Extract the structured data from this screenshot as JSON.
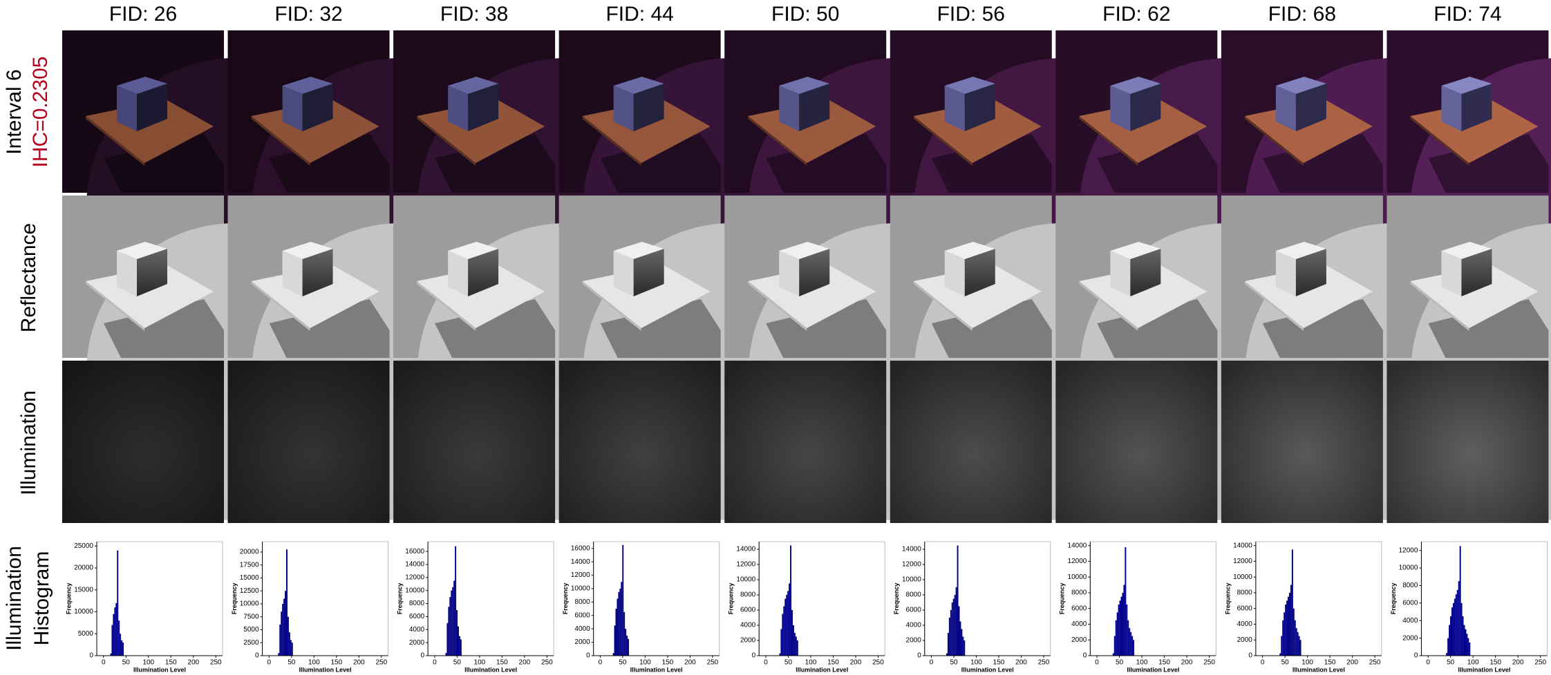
{
  "columns": [
    "FID: 26",
    "FID: 32",
    "FID: 38",
    "FID: 44",
    "FID: 50",
    "FID: 56",
    "FID: 62",
    "FID: 68",
    "FID: 74"
  ],
  "row_labels": {
    "interval": "Interval 6",
    "ihc": "IHC=0.2305",
    "reflectance": "Reflectance",
    "illumination": "Illumination",
    "histogram": [
      "Illumination",
      "Histogram"
    ]
  },
  "chart_data": [
    {
      "type": "histogram",
      "xlabel": "Illumination Level",
      "ylabel": "Frequency",
      "color": "#00008b",
      "bins": [
        15,
        18,
        21,
        24,
        27,
        30,
        33,
        36,
        39,
        42,
        45
      ],
      "values": [
        500,
        7000,
        9500,
        11000,
        12000,
        24000,
        8000,
        5000,
        3500,
        3000
      ],
      "xlim": [
        -15,
        265
      ],
      "xticks": [
        0,
        50,
        100,
        150,
        200,
        250
      ],
      "ylim": [
        0,
        26000
      ],
      "yticks": [
        0,
        5000,
        10000,
        15000,
        20000,
        25000
      ]
    },
    {
      "type": "histogram",
      "xlabel": "Illumination Level",
      "ylabel": "Frequency",
      "color": "#00008b",
      "bins": [
        20,
        23,
        26,
        29,
        32,
        35,
        38,
        41,
        44,
        47,
        50,
        53
      ],
      "values": [
        500,
        6000,
        8500,
        10000,
        11000,
        12500,
        20500,
        7500,
        4500,
        3000,
        2500
      ],
      "xlim": [
        -15,
        265
      ],
      "xticks": [
        0,
        50,
        100,
        150,
        200,
        250
      ],
      "ylim": [
        0,
        22000
      ],
      "yticks": [
        0,
        2500,
        5000,
        7500,
        10000,
        12500,
        15000,
        17500,
        20000
      ]
    },
    {
      "type": "histogram",
      "xlabel": "Illumination Level",
      "ylabel": "Frequency",
      "color": "#00008b",
      "bins": [
        24,
        27,
        30,
        33,
        36,
        39,
        42,
        45,
        48,
        51,
        54,
        57,
        60
      ],
      "values": [
        400,
        5000,
        7500,
        9000,
        10000,
        10500,
        11500,
        16800,
        7000,
        4500,
        3000,
        2500
      ],
      "xlim": [
        -15,
        265
      ],
      "xticks": [
        0,
        50,
        100,
        150,
        200,
        250
      ],
      "ylim": [
        0,
        17500
      ],
      "yticks": [
        0,
        2000,
        4000,
        6000,
        8000,
        10000,
        12000,
        14000,
        16000
      ]
    },
    {
      "type": "histogram",
      "xlabel": "Illumination Level",
      "ylabel": "Frequency",
      "color": "#00008b",
      "bins": [
        28,
        31,
        34,
        37,
        40,
        43,
        46,
        49,
        52,
        55,
        58,
        61,
        64
      ],
      "values": [
        400,
        4500,
        7000,
        8500,
        9500,
        10000,
        11000,
        16500,
        6500,
        4000,
        3000,
        2500
      ],
      "xlim": [
        -15,
        265
      ],
      "xticks": [
        0,
        50,
        100,
        150,
        200,
        250
      ],
      "ylim": [
        0,
        17000
      ],
      "yticks": [
        0,
        2000,
        4000,
        6000,
        8000,
        10000,
        12000,
        14000,
        16000
      ]
    },
    {
      "type": "histogram",
      "xlabel": "Illumination Level",
      "ylabel": "Frequency",
      "color": "#00008b",
      "bins": [
        30,
        33,
        36,
        39,
        42,
        45,
        48,
        51,
        54,
        57,
        60,
        63,
        66,
        69,
        72
      ],
      "values": [
        300,
        3500,
        5500,
        6500,
        7500,
        8000,
        8500,
        9500,
        14500,
        6000,
        4000,
        3000,
        2500,
        2000
      ],
      "xlim": [
        -15,
        265
      ],
      "xticks": [
        0,
        50,
        100,
        150,
        200,
        250
      ],
      "ylim": [
        0,
        15000
      ],
      "yticks": [
        0,
        2000,
        4000,
        6000,
        8000,
        10000,
        12000,
        14000
      ]
    },
    {
      "type": "histogram",
      "xlabel": "Illumination Level",
      "ylabel": "Frequency",
      "color": "#00008b",
      "bins": [
        33,
        36,
        39,
        42,
        45,
        48,
        51,
        54,
        57,
        60,
        63,
        66,
        69,
        72,
        75
      ],
      "values": [
        300,
        3000,
        5000,
        6000,
        7000,
        7500,
        8000,
        9000,
        14500,
        6500,
        4500,
        3500,
        2500,
        2000
      ],
      "xlim": [
        -15,
        265
      ],
      "xticks": [
        0,
        50,
        100,
        150,
        200,
        250
      ],
      "ylim": [
        0,
        15000
      ],
      "yticks": [
        0,
        2000,
        4000,
        6000,
        8000,
        10000,
        12000,
        14000
      ]
    },
    {
      "type": "histogram",
      "xlabel": "Illumination Level",
      "ylabel": "Frequency",
      "color": "#00008b",
      "bins": [
        35,
        38,
        41,
        44,
        47,
        50,
        53,
        56,
        59,
        62,
        65,
        68,
        71,
        74,
        77,
        80,
        83
      ],
      "values": [
        300,
        2500,
        4500,
        5500,
        6500,
        7000,
        7500,
        8000,
        9000,
        13800,
        6500,
        4500,
        3500,
        3000,
        2500,
        2000
      ],
      "xlim": [
        -15,
        265
      ],
      "xticks": [
        0,
        50,
        100,
        150,
        200,
        250
      ],
      "ylim": [
        0,
        14500
      ],
      "yticks": [
        0,
        2000,
        4000,
        6000,
        8000,
        10000,
        12000,
        14000
      ]
    },
    {
      "type": "histogram",
      "xlabel": "Illumination Level",
      "ylabel": "Frequency",
      "color": "#00008b",
      "bins": [
        38,
        41,
        44,
        47,
        50,
        53,
        56,
        59,
        62,
        65,
        68,
        71,
        74,
        77,
        80,
        83,
        86
      ],
      "values": [
        300,
        2500,
        4500,
        5500,
        6500,
        7000,
        7500,
        8000,
        9000,
        13500,
        6000,
        4500,
        3500,
        3000,
        2500,
        2000
      ],
      "xlim": [
        -15,
        265
      ],
      "xticks": [
        0,
        50,
        100,
        150,
        200,
        250
      ],
      "ylim": [
        0,
        14500
      ],
      "yticks": [
        0,
        2000,
        4000,
        6000,
        8000,
        10000,
        12000,
        14000
      ]
    },
    {
      "type": "histogram",
      "xlabel": "Illumination Level",
      "ylabel": "Frequency",
      "color": "#00008b",
      "bins": [
        40,
        43,
        46,
        49,
        52,
        55,
        58,
        61,
        64,
        67,
        70,
        73,
        76,
        79,
        82,
        85,
        88,
        91,
        94
      ],
      "values": [
        300,
        2000,
        3500,
        4500,
        5500,
        6000,
        6500,
        7000,
        7500,
        8500,
        12500,
        6000,
        4500,
        3500,
        3000,
        2500,
        2000,
        1500
      ],
      "xlim": [
        -15,
        265
      ],
      "xticks": [
        0,
        50,
        100,
        150,
        200,
        250
      ],
      "ylim": [
        0,
        13000
      ],
      "yticks": [
        0,
        2000,
        4000,
        6000,
        8000,
        10000,
        12000
      ]
    }
  ]
}
